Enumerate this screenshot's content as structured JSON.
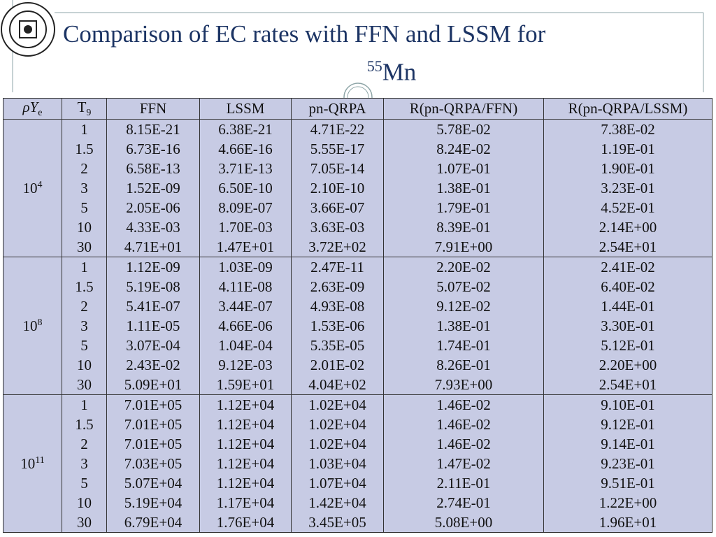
{
  "title": {
    "line1": "Comparison of EC rates with FFN and LSSM for",
    "superscript": "55",
    "element": "Mn"
  },
  "table": {
    "columns": [
      {
        "text": "ρY",
        "sub": "e"
      },
      {
        "text": "T",
        "sub": "9"
      },
      "FFN",
      "LSSM",
      "pn-QRPA",
      "R(pn-QRPA/FFN)",
      "R(pn-QRPA/LSSM)"
    ],
    "groups": [
      {
        "density": {
          "base": "10",
          "exp": "4"
        },
        "rows": [
          [
            "1",
            "8.15E-21",
            "6.38E-21",
            "4.71E-22",
            "5.78E-02",
            "7.38E-02"
          ],
          [
            "1.5",
            "6.73E-16",
            "4.66E-16",
            "5.55E-17",
            "8.24E-02",
            "1.19E-01"
          ],
          [
            "2",
            "6.58E-13",
            "3.71E-13",
            "7.05E-14",
            "1.07E-01",
            "1.90E-01"
          ],
          [
            "3",
            "1.52E-09",
            "6.50E-10",
            "2.10E-10",
            "1.38E-01",
            "3.23E-01"
          ],
          [
            "5",
            "2.05E-06",
            "8.09E-07",
            "3.66E-07",
            "1.79E-01",
            "4.52E-01"
          ],
          [
            "10",
            "4.33E-03",
            "1.70E-03",
            "3.63E-03",
            "8.39E-01",
            "2.14E+00"
          ],
          [
            "30",
            "4.71E+01",
            "1.47E+01",
            "3.72E+02",
            "7.91E+00",
            "2.54E+01"
          ]
        ]
      },
      {
        "density": {
          "base": "10",
          "exp": "8"
        },
        "rows": [
          [
            "1",
            "1.12E-09",
            "1.03E-09",
            "2.47E-11",
            "2.20E-02",
            "2.41E-02"
          ],
          [
            "1.5",
            "5.19E-08",
            "4.11E-08",
            "2.63E-09",
            "5.07E-02",
            "6.40E-02"
          ],
          [
            "2",
            "5.41E-07",
            "3.44E-07",
            "4.93E-08",
            "9.12E-02",
            "1.44E-01"
          ],
          [
            "3",
            "1.11E-05",
            "4.66E-06",
            "1.53E-06",
            "1.38E-01",
            "3.30E-01"
          ],
          [
            "5",
            "3.07E-04",
            "1.04E-04",
            "5.35E-05",
            "1.74E-01",
            "5.12E-01"
          ],
          [
            "10",
            "2.43E-02",
            "9.12E-03",
            "2.01E-02",
            "8.26E-01",
            "2.20E+00"
          ],
          [
            "30",
            "5.09E+01",
            "1.59E+01",
            "4.04E+02",
            "7.93E+00",
            "2.54E+01"
          ]
        ]
      },
      {
        "density": {
          "base": "10",
          "exp": "11"
        },
        "rows": [
          [
            "1",
            "7.01E+05",
            "1.12E+04",
            "1.02E+04",
            "1.46E-02",
            "9.10E-01"
          ],
          [
            "1.5",
            "7.01E+05",
            "1.12E+04",
            "1.02E+04",
            "1.46E-02",
            "9.12E-01"
          ],
          [
            "2",
            "7.01E+05",
            "1.12E+04",
            "1.02E+04",
            "1.46E-02",
            "9.14E-01"
          ],
          [
            "3",
            "7.03E+05",
            "1.12E+04",
            "1.03E+04",
            "1.47E-02",
            "9.23E-01"
          ],
          [
            "5",
            "5.07E+04",
            "1.12E+04",
            "1.07E+04",
            "2.11E-01",
            "9.51E-01"
          ],
          [
            "10",
            "5.19E+04",
            "1.17E+04",
            "1.42E+04",
            "2.74E-01",
            "1.22E+00"
          ],
          [
            "30",
            "6.79E+04",
            "1.76E+04",
            "3.45E+05",
            "5.08E+00",
            "1.96E+01"
          ]
        ]
      }
    ]
  }
}
